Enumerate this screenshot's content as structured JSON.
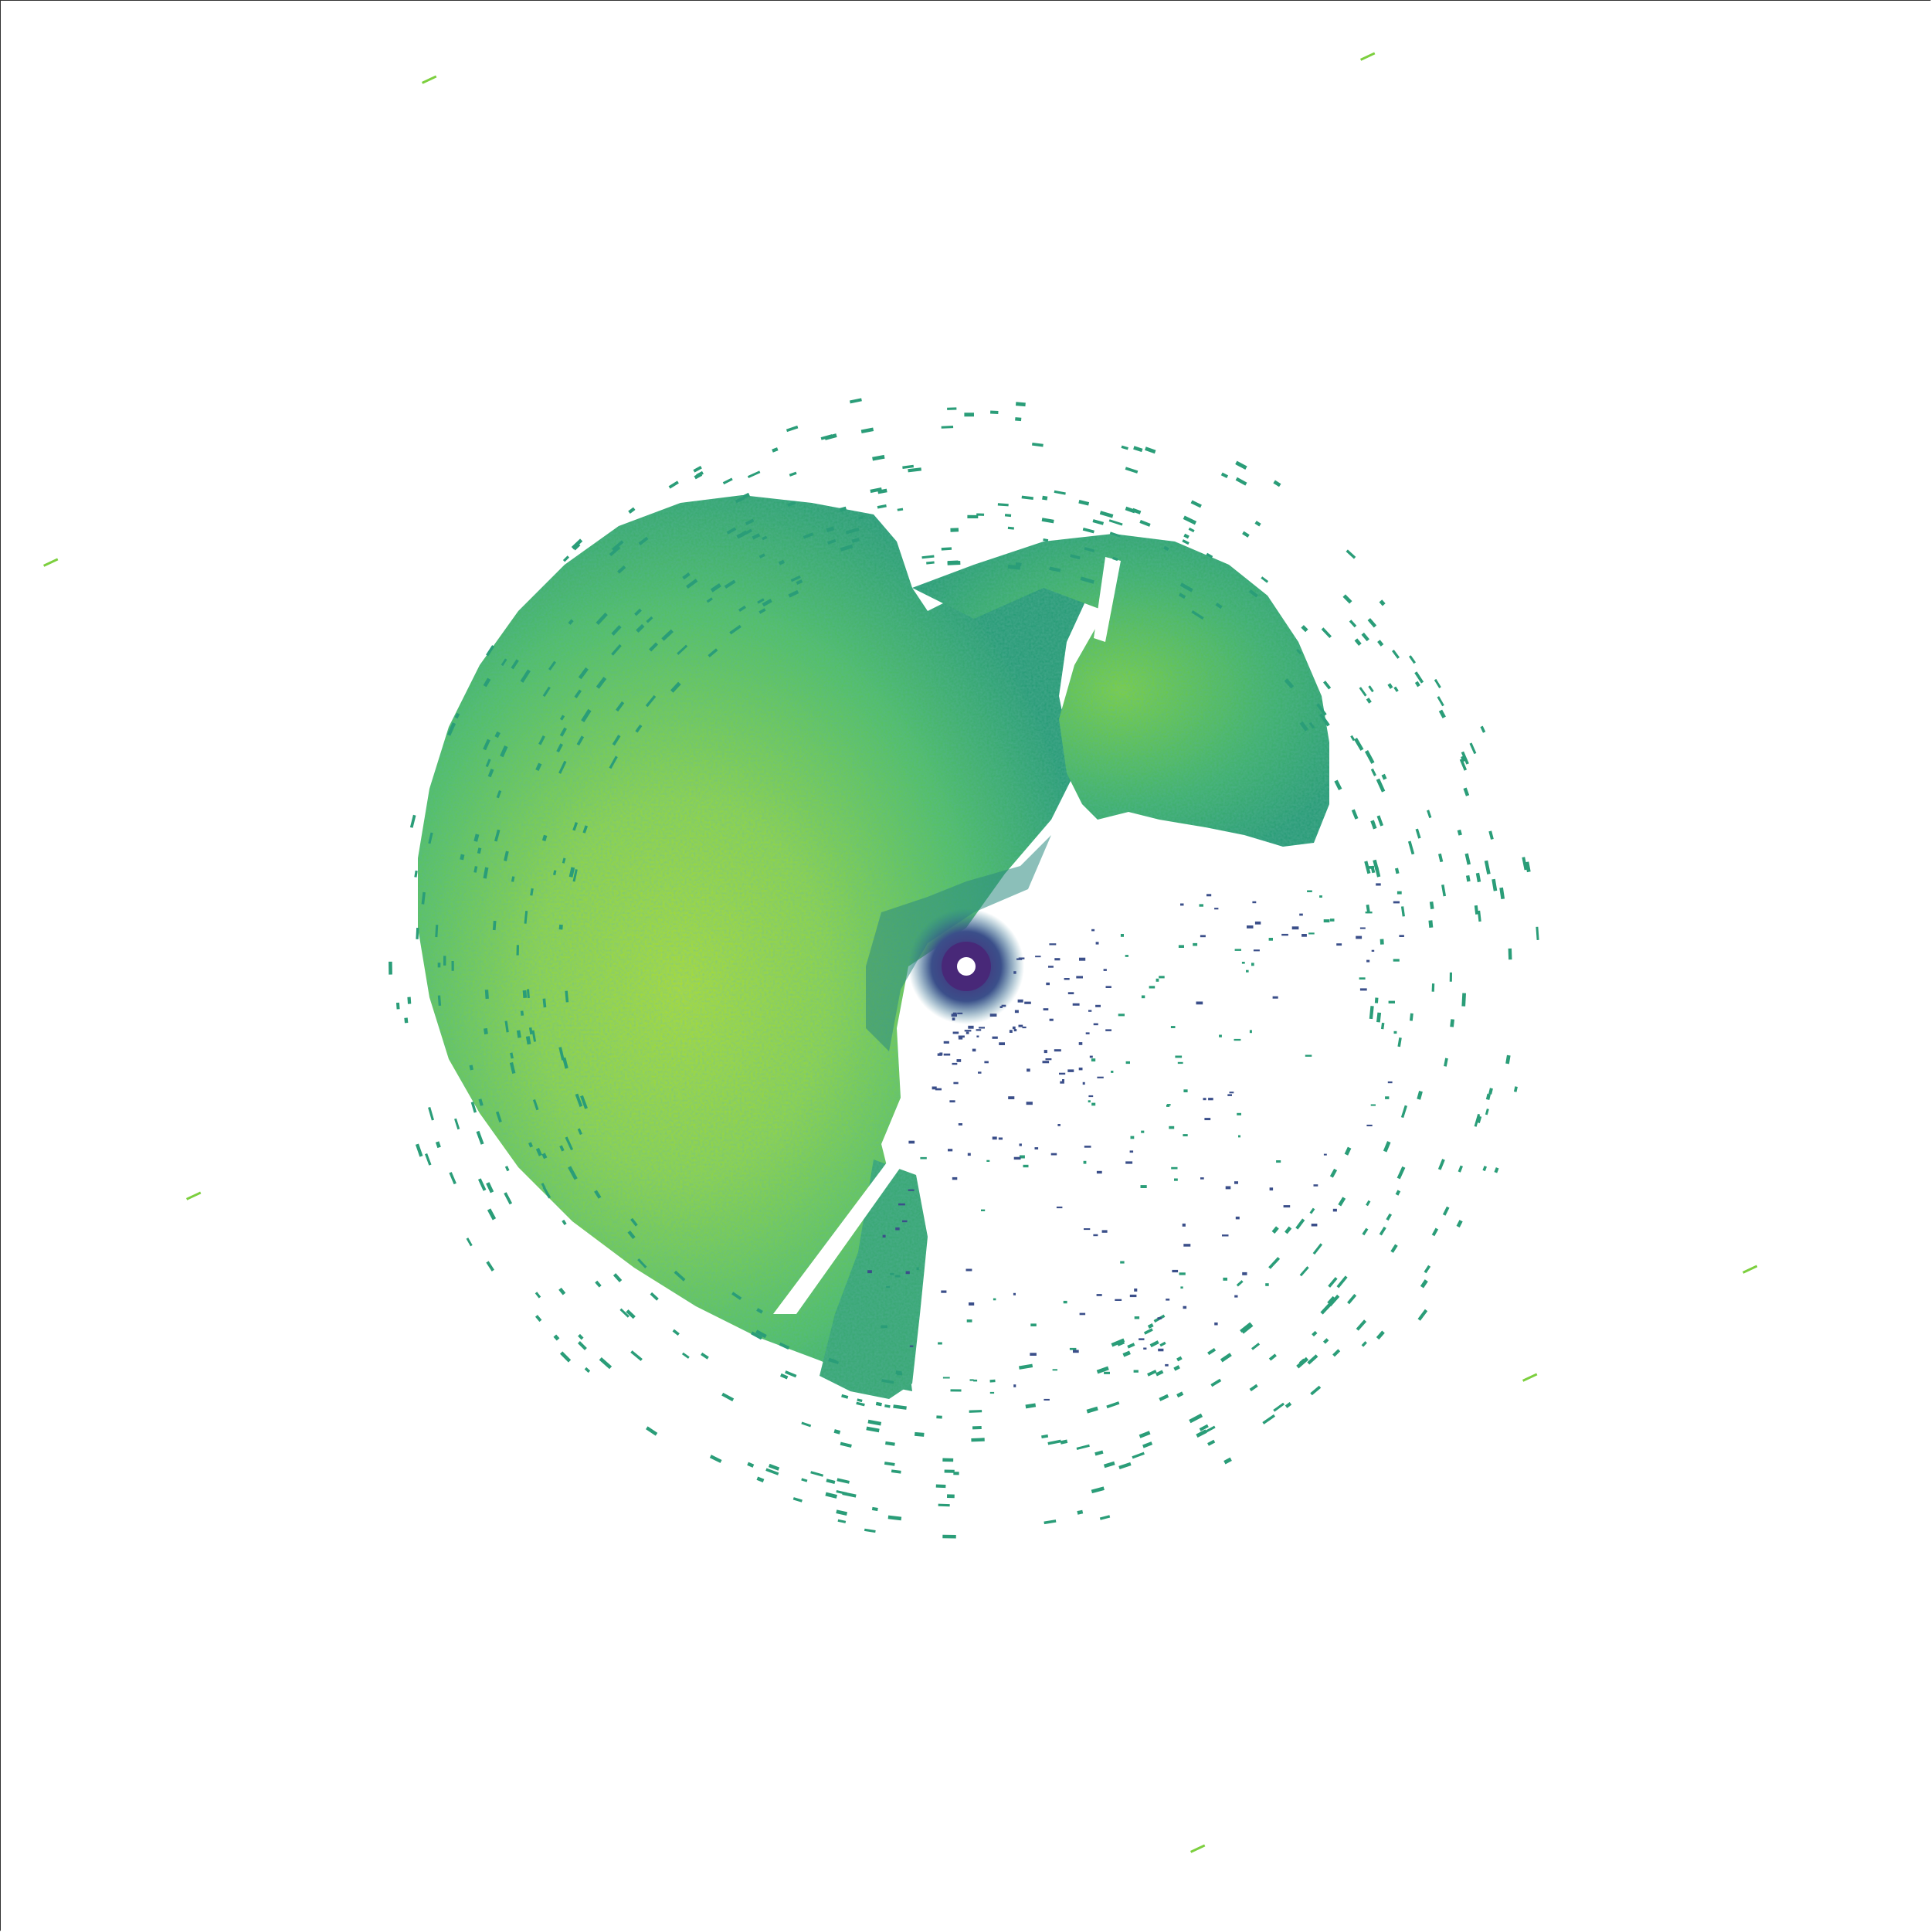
{
  "image": {
    "kind": "radar-reflectivity-ppi",
    "colormap": "viridis",
    "colormap_stops": [
      "#440154",
      "#3b528b",
      "#21918c",
      "#5ec962",
      "#fde725"
    ],
    "palette": {
      "background": "#ffffff",
      "frame": "#333333",
      "echo_low": "#3b4f8a",
      "echo_mid": "#2a9d78",
      "echo_high": "#7ccf3e",
      "echo_peak": "#b5de2b",
      "center_ring": "#482878"
    },
    "visible_text": []
  }
}
